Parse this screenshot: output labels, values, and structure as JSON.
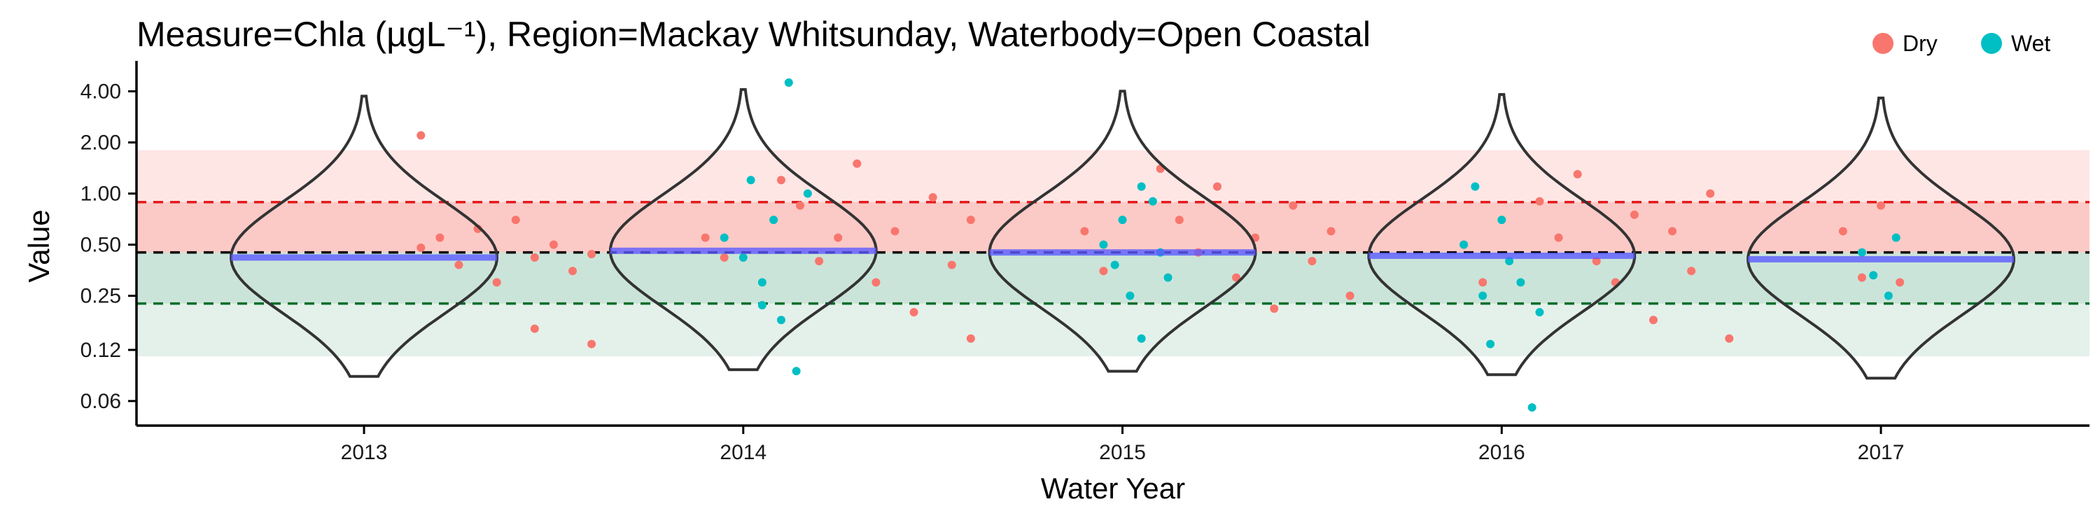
{
  "chart_data": {
    "type": "scatter",
    "title": "Measure=Chla (µgL⁻¹), Region=Mackay Whitsunday, Waterbody=Open Coastal",
    "xlabel": "Water Year",
    "ylabel": "Value",
    "y_scale": "log",
    "ylim": [
      0.043,
      5.6
    ],
    "y_ticks": [
      0.06,
      0.12,
      0.25,
      0.5,
      1.0,
      2.0,
      4.0
    ],
    "y_tick_labels": [
      "0.06",
      "0.12",
      "0.25",
      "0.50",
      "1.00",
      "2.00",
      "4.00"
    ],
    "categories": [
      "2013",
      "2014",
      "2015",
      "2016",
      "2017"
    ],
    "legend": {
      "position": "top-right",
      "entries": [
        {
          "name": "Dry",
          "color": "#F8766D"
        },
        {
          "name": "Wet",
          "color": "#00BFC4"
        }
      ]
    },
    "reference_lines": [
      {
        "value": 0.89,
        "color": "#E41A1C",
        "style": "dashed"
      },
      {
        "value": 0.45,
        "color": "#000000",
        "style": "dashed"
      },
      {
        "value": 0.225,
        "color": "#006D2C",
        "style": "dashed"
      }
    ],
    "bands": [
      {
        "from": 0.45,
        "to": 1.8,
        "color": "#F8766D",
        "opacity": 0.18
      },
      {
        "from": 0.45,
        "to": 0.89,
        "color": "#F8766D",
        "opacity": 0.25
      },
      {
        "from": 0.11,
        "to": 0.45,
        "color": "#A6D1BE",
        "opacity": 0.3
      },
      {
        "from": 0.225,
        "to": 0.45,
        "color": "#A6D1BE",
        "opacity": 0.4
      }
    ],
    "violin_median": [
      0.42,
      0.46,
      0.45,
      0.43,
      0.41
    ],
    "series": [
      {
        "name": "Dry",
        "color": "#F8766D",
        "points": [
          {
            "x": 2013.15,
            "y": 0.48
          },
          {
            "x": 2013.2,
            "y": 0.55
          },
          {
            "x": 2013.25,
            "y": 0.38
          },
          {
            "x": 2013.3,
            "y": 0.62
          },
          {
            "x": 2013.35,
            "y": 0.3
          },
          {
            "x": 2013.4,
            "y": 0.7
          },
          {
            "x": 2013.45,
            "y": 0.42
          },
          {
            "x": 2013.5,
            "y": 0.5
          },
          {
            "x": 2013.55,
            "y": 0.35
          },
          {
            "x": 2013.6,
            "y": 0.44
          },
          {
            "x": 2013.15,
            "y": 2.2
          },
          {
            "x": 2013.45,
            "y": 0.16
          },
          {
            "x": 2013.6,
            "y": 0.13
          },
          {
            "x": 2013.9,
            "y": 0.55
          },
          {
            "x": 2013.95,
            "y": 0.42
          },
          {
            "x": 2014.1,
            "y": 1.2
          },
          {
            "x": 2014.15,
            "y": 0.85
          },
          {
            "x": 2014.2,
            "y": 0.4
          },
          {
            "x": 2014.25,
            "y": 0.55
          },
          {
            "x": 2014.3,
            "y": 1.5
          },
          {
            "x": 2014.35,
            "y": 0.3
          },
          {
            "x": 2014.4,
            "y": 0.6
          },
          {
            "x": 2014.45,
            "y": 0.2
          },
          {
            "x": 2014.5,
            "y": 0.95
          },
          {
            "x": 2014.55,
            "y": 0.38
          },
          {
            "x": 2014.6,
            "y": 0.14
          },
          {
            "x": 2014.6,
            "y": 0.7
          },
          {
            "x": 2014.9,
            "y": 0.6
          },
          {
            "x": 2014.95,
            "y": 0.35
          },
          {
            "x": 2015.1,
            "y": 1.4
          },
          {
            "x": 2015.15,
            "y": 0.7
          },
          {
            "x": 2015.2,
            "y": 0.45
          },
          {
            "x": 2015.25,
            "y": 1.1
          },
          {
            "x": 2015.3,
            "y": 0.32
          },
          {
            "x": 2015.35,
            "y": 0.55
          },
          {
            "x": 2015.4,
            "y": 0.21
          },
          {
            "x": 2015.45,
            "y": 0.85
          },
          {
            "x": 2015.5,
            "y": 0.4
          },
          {
            "x": 2015.55,
            "y": 0.6
          },
          {
            "x": 2015.6,
            "y": 0.25
          },
          {
            "x": 2015.9,
            "y": 0.5
          },
          {
            "x": 2015.95,
            "y": 0.3
          },
          {
            "x": 2016.1,
            "y": 0.9
          },
          {
            "x": 2016.15,
            "y": 0.55
          },
          {
            "x": 2016.2,
            "y": 1.3
          },
          {
            "x": 2016.25,
            "y": 0.4
          },
          {
            "x": 2016.3,
            "y": 0.3
          },
          {
            "x": 2016.35,
            "y": 0.75
          },
          {
            "x": 2016.4,
            "y": 0.18
          },
          {
            "x": 2016.45,
            "y": 0.6
          },
          {
            "x": 2016.5,
            "y": 0.35
          },
          {
            "x": 2016.55,
            "y": 1.0
          },
          {
            "x": 2016.6,
            "y": 0.14
          },
          {
            "x": 2016.9,
            "y": 0.6
          },
          {
            "x": 2016.95,
            "y": 0.32
          },
          {
            "x": 2017.0,
            "y": 0.85
          },
          {
            "x": 2017.05,
            "y": 0.3
          }
        ]
      },
      {
        "name": "Wet",
        "color": "#00BFC4",
        "points": [
          {
            "x": 2013.95,
            "y": 0.55
          },
          {
            "x": 2014.0,
            "y": 0.42
          },
          {
            "x": 2014.02,
            "y": 1.2
          },
          {
            "x": 2014.05,
            "y": 0.3
          },
          {
            "x": 2014.08,
            "y": 0.7
          },
          {
            "x": 2014.1,
            "y": 0.18
          },
          {
            "x": 2014.12,
            "y": 4.5
          },
          {
            "x": 2014.14,
            "y": 0.09
          },
          {
            "x": 2014.17,
            "y": 1.0
          },
          {
            "x": 2014.05,
            "y": 0.22
          },
          {
            "x": 2014.95,
            "y": 0.5
          },
          {
            "x": 2014.98,
            "y": 0.38
          },
          {
            "x": 2015.0,
            "y": 0.7
          },
          {
            "x": 2015.02,
            "y": 0.25
          },
          {
            "x": 2015.05,
            "y": 0.14
          },
          {
            "x": 2015.08,
            "y": 0.9
          },
          {
            "x": 2015.1,
            "y": 0.45
          },
          {
            "x": 2015.12,
            "y": 0.32
          },
          {
            "x": 2015.05,
            "y": 1.1
          },
          {
            "x": 2015.9,
            "y": 0.5
          },
          {
            "x": 2015.93,
            "y": 1.1
          },
          {
            "x": 2015.95,
            "y": 0.25
          },
          {
            "x": 2015.97,
            "y": 0.13
          },
          {
            "x": 2016.0,
            "y": 0.7
          },
          {
            "x": 2016.02,
            "y": 0.4
          },
          {
            "x": 2016.05,
            "y": 0.3
          },
          {
            "x": 2016.08,
            "y": 0.055
          },
          {
            "x": 2016.1,
            "y": 0.2
          },
          {
            "x": 2016.95,
            "y": 0.45
          },
          {
            "x": 2016.98,
            "y": 0.33
          },
          {
            "x": 2017.02,
            "y": 0.25
          },
          {
            "x": 2017.04,
            "y": 0.55
          }
        ]
      }
    ]
  }
}
